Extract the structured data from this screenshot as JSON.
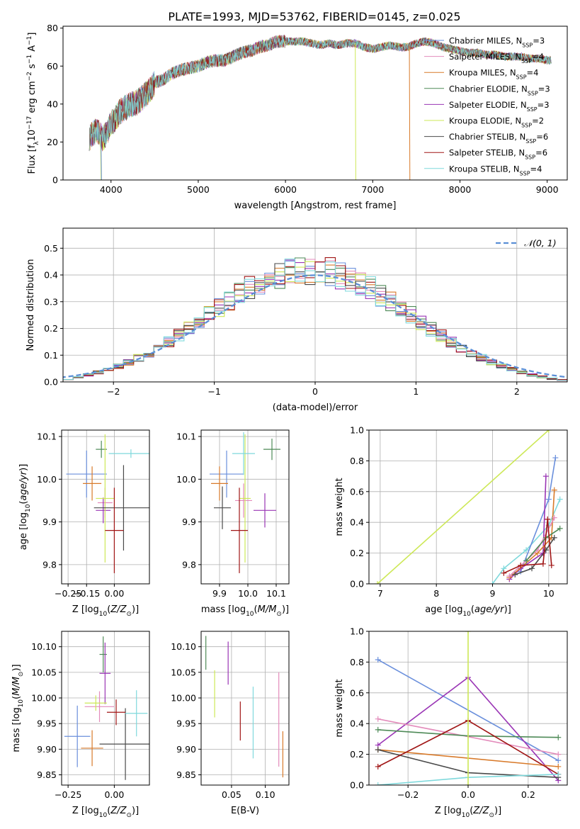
{
  "figure": {
    "title": "PLATE=1993, MJD=53762, FIBERID=0145, z=0.025"
  },
  "colors": {
    "Chabrier MILES": "#6a8fdc",
    "Salpeter MILES": "#e38bbb",
    "Kroupa MILES": "#d87a2a",
    "Chabrier ELODIE": "#4e8a57",
    "Salpeter ELODIE": "#9a35b5",
    "Kroupa ELODIE": "#cde857",
    "Chabrier STELIB": "#4a4a4a",
    "Salpeter STELIB": "#a01616",
    "Kroupa STELIB": "#7fd9dc",
    "gauss": "#5b8fd6",
    "grid": "#b0b0b0"
  },
  "chart_data": [
    {
      "id": "spectrum",
      "type": "line",
      "xlabel": "wavelength [Angstrom, rest frame]",
      "ylabel_parts": [
        "Flux [f",
        "λ",
        "10",
        "−17",
        " erg cm",
        "−2",
        " s",
        "−1",
        " A",
        "−1",
        "]"
      ],
      "xlim": [
        3450,
        9230
      ],
      "ylim": [
        0,
        81
      ],
      "xticks": [
        4000,
        5000,
        6000,
        7000,
        8000,
        9000
      ],
      "yticks": [
        0,
        20,
        40,
        60,
        80
      ],
      "legend_position": "top-right",
      "series": [
        {
          "name": "Chabrier MILES",
          "nssp": 3
        },
        {
          "name": "Salpeter MILES",
          "nssp": 4
        },
        {
          "name": "Kroupa MILES",
          "nssp": 4
        },
        {
          "name": "Chabrier ELODIE",
          "nssp": 3
        },
        {
          "name": "Salpeter ELODIE",
          "nssp": 3
        },
        {
          "name": "Kroupa ELODIE",
          "nssp": 2
        },
        {
          "name": "Chabrier STELIB",
          "nssp": 6
        },
        {
          "name": "Salpeter STELIB",
          "nssp": 6
        },
        {
          "name": "Kroupa STELIB",
          "nssp": 4
        }
      ],
      "continuum": [
        [
          3750,
          22
        ],
        [
          3800,
          25
        ],
        [
          3850,
          26
        ],
        [
          3900,
          22
        ],
        [
          3950,
          24
        ],
        [
          4000,
          30
        ],
        [
          4050,
          32
        ],
        [
          4100,
          36
        ],
        [
          4200,
          39
        ],
        [
          4300,
          41
        ],
        [
          4400,
          45
        ],
        [
          4500,
          51
        ],
        [
          4600,
          53
        ],
        [
          4700,
          56
        ],
        [
          4800,
          58
        ],
        [
          4900,
          59
        ],
        [
          5000,
          60
        ],
        [
          5100,
          62
        ],
        [
          5200,
          63
        ],
        [
          5300,
          63
        ],
        [
          5400,
          65
        ],
        [
          5500,
          67
        ],
        [
          5600,
          68
        ],
        [
          5700,
          70
        ],
        [
          5800,
          71
        ],
        [
          5900,
          73
        ],
        [
          6000,
          73
        ],
        [
          6100,
          73
        ],
        [
          6200,
          73
        ],
        [
          6300,
          72
        ],
        [
          6400,
          71
        ],
        [
          6500,
          72
        ],
        [
          6600,
          71
        ],
        [
          6700,
          72
        ],
        [
          6800,
          72
        ],
        [
          6900,
          70
        ],
        [
          7000,
          69
        ],
        [
          7100,
          70
        ],
        [
          7200,
          71
        ],
        [
          7300,
          70
        ],
        [
          7400,
          70
        ],
        [
          7500,
          72
        ],
        [
          7600,
          73
        ],
        [
          7700,
          72
        ],
        [
          7800,
          70
        ],
        [
          7900,
          69
        ],
        [
          8000,
          68
        ],
        [
          8100,
          67
        ],
        [
          8200,
          67
        ],
        [
          8300,
          66
        ],
        [
          8400,
          66
        ],
        [
          8500,
          65
        ],
        [
          8600,
          65
        ],
        [
          8700,
          65
        ],
        [
          8800,
          64
        ],
        [
          8900,
          64
        ],
        [
          9000,
          63
        ],
        [
          9050,
          63
        ]
      ],
      "dropouts": [
        {
          "x": 3880,
          "to": 0,
          "series": "Kroupa ELODIE"
        },
        {
          "x": 3885,
          "to": 0,
          "series": "Chabrier MILES"
        },
        {
          "x": 6800,
          "to": 0,
          "series": "Kroupa ELODIE"
        },
        {
          "x": 7420,
          "to": 0,
          "series": "Kroupa MILES"
        }
      ]
    },
    {
      "id": "residuals",
      "type": "histogram",
      "xlabel": "(data-model)/error",
      "ylabel": "Normed distribution",
      "xlim": [
        -2.5,
        2.5
      ],
      "ylim": [
        0,
        0.575
      ],
      "xticks": [
        -2,
        -1,
        0,
        1,
        2
      ],
      "yticks": [
        0.0,
        0.1,
        0.2,
        0.3,
        0.4,
        0.5
      ],
      "bin_width": 0.1,
      "legend": [
        {
          "label": "𝒩(0, 1)",
          "style": "dashed"
        }
      ],
      "legend_position": "top-right"
    },
    {
      "id": "age_vs_Z",
      "type": "errorbar",
      "xlabel": "Z [log10(Z/Z⊙)]",
      "ylabel": "age [log10(age/yr)]",
      "xlim": [
        -0.285,
        0.19
      ],
      "ylim": [
        9.755,
        10.115
      ],
      "xticks": [
        -0.25,
        -0.15,
        0.0
      ],
      "yticks": [
        9.8,
        9.9,
        10.0,
        10.1
      ],
      "points": [
        {
          "series": "Chabrier MILES",
          "x": -0.15,
          "xerr": 0.11,
          "y": 10.012,
          "yerr": 0.055
        },
        {
          "series": "Salpeter MILES",
          "x": -0.05,
          "xerr": 0.04,
          "y": 9.945,
          "yerr": 0.035
        },
        {
          "series": "Kroupa MILES",
          "x": -0.12,
          "xerr": 0.05,
          "y": 9.99,
          "yerr": 0.04
        },
        {
          "series": "Chabrier ELODIE",
          "x": -0.07,
          "xerr": 0.03,
          "y": 10.07,
          "yerr": 0.02
        },
        {
          "series": "Salpeter ELODIE",
          "x": -0.06,
          "xerr": 0.04,
          "y": 9.927,
          "yerr": 0.03
        },
        {
          "series": "Kroupa ELODIE",
          "x": -0.05,
          "xerr": 0.05,
          "y": 9.955,
          "yerr": 0.15
        },
        {
          "series": "Chabrier STELIB",
          "x": 0.05,
          "xerr": 0.16,
          "y": 9.933,
          "yerr": 0.1
        },
        {
          "series": "Salpeter STELIB",
          "x": 0.0,
          "xerr": 0.05,
          "y": 9.88,
          "yerr": 0.1
        },
        {
          "series": "Kroupa STELIB",
          "x": 0.09,
          "xerr": 0.12,
          "y": 10.06,
          "yerr": 0.01
        }
      ]
    },
    {
      "id": "age_vs_mass",
      "type": "errorbar",
      "xlabel": "mass [log10(M/M⊙)]",
      "xlim": [
        9.835,
        10.145
      ],
      "ylim": [
        9.755,
        10.115
      ],
      "xticks": [
        9.9,
        10.0,
        10.1
      ],
      "yticks": [
        9.8,
        9.9,
        10.0,
        10.1
      ],
      "points": [
        {
          "series": "Chabrier MILES",
          "x": 9.925,
          "xerr": 0.06,
          "y": 10.012,
          "yerr": 0.055
        },
        {
          "series": "Salpeter MILES",
          "x": 9.985,
          "xerr": 0.03,
          "y": 9.95,
          "yerr": 0.04
        },
        {
          "series": "Kroupa MILES",
          "x": 9.9,
          "xerr": 0.03,
          "y": 9.99,
          "yerr": 0.04
        },
        {
          "series": "Chabrier ELODIE",
          "x": 10.085,
          "xerr": 0.03,
          "y": 10.07,
          "yerr": 0.025
        },
        {
          "series": "Salpeter ELODIE",
          "x": 10.06,
          "xerr": 0.04,
          "y": 9.927,
          "yerr": 0.04
        },
        {
          "series": "Kroupa ELODIE",
          "x": 9.99,
          "xerr": 0.02,
          "y": 9.955,
          "yerr": 0.15
        },
        {
          "series": "Chabrier STELIB",
          "x": 9.91,
          "xerr": 0.03,
          "y": 9.933,
          "yerr": 0.05
        },
        {
          "series": "Salpeter STELIB",
          "x": 9.97,
          "xerr": 0.03,
          "y": 9.88,
          "yerr": 0.1
        },
        {
          "series": "Kroupa STELIB",
          "x": 9.985,
          "xerr": 0.04,
          "y": 10.06,
          "yerr": 0.05
        }
      ]
    },
    {
      "id": "weight_vs_age",
      "type": "line",
      "xlabel": "age [log10(age/yr)]",
      "ylabel": "mass weight",
      "xlim": [
        6.8,
        10.33
      ],
      "ylim": [
        0,
        1.0
      ],
      "xticks": [
        7,
        8,
        9,
        10
      ],
      "yticks": [
        0.0,
        0.2,
        0.4,
        0.6,
        0.8,
        1.0
      ],
      "series": [
        {
          "name": "Kroupa ELODIE",
          "points": [
            [
              6.95,
              0.0
            ],
            [
              10.0,
              1.0
            ]
          ]
        },
        {
          "name": "Kroupa STELIB",
          "points": [
            [
              9.0,
              0.0
            ],
            [
              9.2,
              0.1
            ],
            [
              9.6,
              0.22
            ],
            [
              10.0,
              0.38
            ],
            [
              10.2,
              0.55
            ]
          ]
        },
        {
          "name": "Chabrier MILES",
          "points": [
            [
              9.5,
              0.08
            ],
            [
              10.0,
              0.55
            ],
            [
              10.12,
              0.82
            ]
          ]
        },
        {
          "name": "Salpeter ELODIE",
          "points": [
            [
              9.3,
              0.03
            ],
            [
              9.5,
              0.1
            ],
            [
              9.9,
              0.2
            ],
            [
              9.95,
              0.7
            ]
          ]
        },
        {
          "name": "Kroupa MILES",
          "points": [
            [
              9.3,
              0.04
            ],
            [
              9.8,
              0.2
            ],
            [
              10.05,
              0.3
            ],
            [
              10.1,
              0.61
            ]
          ]
        },
        {
          "name": "Salpeter MILES",
          "points": [
            [
              9.3,
              0.05
            ],
            [
              9.8,
              0.22
            ],
            [
              10.1,
              0.43
            ]
          ]
        },
        {
          "name": "Chabrier ELODIE",
          "points": [
            [
              9.6,
              0.15
            ],
            [
              9.95,
              0.3
            ],
            [
              10.2,
              0.36
            ]
          ]
        },
        {
          "name": "Chabrier STELIB",
          "points": [
            [
              9.4,
              0.06
            ],
            [
              9.7,
              0.1
            ],
            [
              9.95,
              0.22
            ],
            [
              10.1,
              0.3
            ]
          ]
        },
        {
          "name": "Salpeter STELIB",
          "points": [
            [
              9.2,
              0.07
            ],
            [
              9.5,
              0.12
            ],
            [
              9.9,
              0.13
            ],
            [
              9.98,
              0.42
            ],
            [
              10.05,
              0.12
            ]
          ]
        }
      ]
    },
    {
      "id": "mass_vs_Z",
      "type": "errorbar",
      "xlabel": "Z [log10(Z/Z⊙)]",
      "ylabel": "mass [log10(M/M⊙)]",
      "xlim": [
        -0.285,
        0.19
      ],
      "ylim": [
        9.83,
        10.13
      ],
      "xticks": [
        -0.25,
        0.0
      ],
      "yticks": [
        9.85,
        9.9,
        9.95,
        10.0,
        10.05,
        10.1
      ],
      "points": [
        {
          "series": "Chabrier MILES",
          "x": -0.2,
          "xerr": 0.07,
          "y": 9.925,
          "yerr": 0.06
        },
        {
          "series": "Salpeter MILES",
          "x": -0.08,
          "xerr": 0.08,
          "y": 9.983,
          "yerr": 0.03
        },
        {
          "series": "Kroupa MILES",
          "x": -0.12,
          "xerr": 0.06,
          "y": 9.902,
          "yerr": 0.035
        },
        {
          "series": "Chabrier ELODIE",
          "x": -0.06,
          "xerr": 0.02,
          "y": 10.085,
          "yerr": 0.035
        },
        {
          "series": "Salpeter ELODIE",
          "x": -0.05,
          "xerr": 0.03,
          "y": 10.048,
          "yerr": 0.06
        },
        {
          "series": "Kroupa ELODIE",
          "x": -0.1,
          "xerr": 0.06,
          "y": 9.99,
          "yerr": 0.015
        },
        {
          "series": "Chabrier STELIB",
          "x": 0.06,
          "xerr": 0.14,
          "y": 9.91,
          "yerr": 0.07
        },
        {
          "series": "Salpeter STELIB",
          "x": 0.01,
          "xerr": 0.05,
          "y": 9.972,
          "yerr": 0.025
        },
        {
          "series": "Kroupa STELIB",
          "x": 0.12,
          "xerr": 0.06,
          "y": 9.97,
          "yerr": 0.045
        }
      ]
    },
    {
      "id": "mass_vs_ebv",
      "type": "errorbar",
      "xlabel": "E(B-V)",
      "xlim": [
        0.005,
        0.135
      ],
      "ylim": [
        9.83,
        10.13
      ],
      "xticks": [
        0.05,
        0.1
      ],
      "yticks": [
        9.85,
        9.9,
        9.95,
        10.0,
        10.05,
        10.1
      ],
      "points": [
        {
          "series": "Chabrier ELODIE",
          "x": 0.012,
          "y": 10.088,
          "yerr": 0.033
        },
        {
          "series": "Kroupa ELODIE",
          "x": 0.025,
          "y": 10.008,
          "yerr": 0.046
        },
        {
          "series": "Salpeter ELODIE",
          "x": 0.045,
          "y": 10.068,
          "yerr": 0.042
        },
        {
          "series": "Salpeter STELIB",
          "x": 0.063,
          "y": 9.955,
          "yerr": 0.038
        },
        {
          "series": "Kroupa STELIB",
          "x": 0.082,
          "y": 9.952,
          "yerr": 0.07
        },
        {
          "series": "Salpeter MILES",
          "x": 0.12,
          "y": 9.958,
          "yerr": 0.092
        },
        {
          "series": "Kroupa MILES",
          "x": 0.126,
          "y": 9.89,
          "yerr": 0.045
        }
      ]
    },
    {
      "id": "weight_vs_Z",
      "type": "line",
      "xlabel": "Z [log10(Z/Z⊙)]",
      "ylabel": "mass weight",
      "xlim": [
        -0.33,
        0.33
      ],
      "ylim": [
        0,
        1.0
      ],
      "xticks": [
        -0.2,
        0.0,
        0.2
      ],
      "yticks": [
        0.0,
        0.2,
        0.4,
        0.6,
        0.8,
        1.0
      ],
      "series": [
        {
          "name": "Chabrier MILES",
          "points": [
            [
              -0.3,
              0.815
            ],
            [
              0.3,
              0.16
            ]
          ]
        },
        {
          "name": "Salpeter ELODIE",
          "points": [
            [
              -0.3,
              0.26
            ],
            [
              0.0,
              0.7
            ],
            [
              0.3,
              0.03
            ]
          ]
        },
        {
          "name": "Salpeter MILES",
          "points": [
            [
              -0.3,
              0.43
            ],
            [
              0.3,
              0.2
            ]
          ]
        },
        {
          "name": "Chabrier ELODIE",
          "points": [
            [
              -0.3,
              0.36
            ],
            [
              0.0,
              0.32
            ],
            [
              0.3,
              0.31
            ]
          ]
        },
        {
          "name": "Kroupa MILES",
          "points": [
            [
              -0.3,
              0.23
            ],
            [
              0.3,
              0.12
            ]
          ]
        },
        {
          "name": "Chabrier STELIB",
          "points": [
            [
              -0.3,
              0.23
            ],
            [
              0.0,
              0.08
            ],
            [
              0.3,
              0.05
            ]
          ]
        },
        {
          "name": "Salpeter STELIB",
          "points": [
            [
              -0.3,
              0.12
            ],
            [
              0.0,
              0.42
            ],
            [
              0.3,
              0.07
            ]
          ]
        },
        {
          "name": "Kroupa STELIB",
          "points": [
            [
              -0.3,
              0.0
            ],
            [
              0.0,
              0.05
            ],
            [
              0.3,
              0.07
            ]
          ]
        },
        {
          "name": "Kroupa ELODIE",
          "points": [
            [
              0.0,
              0.0
            ],
            [
              0.0,
              1.0
            ]
          ]
        }
      ]
    }
  ]
}
